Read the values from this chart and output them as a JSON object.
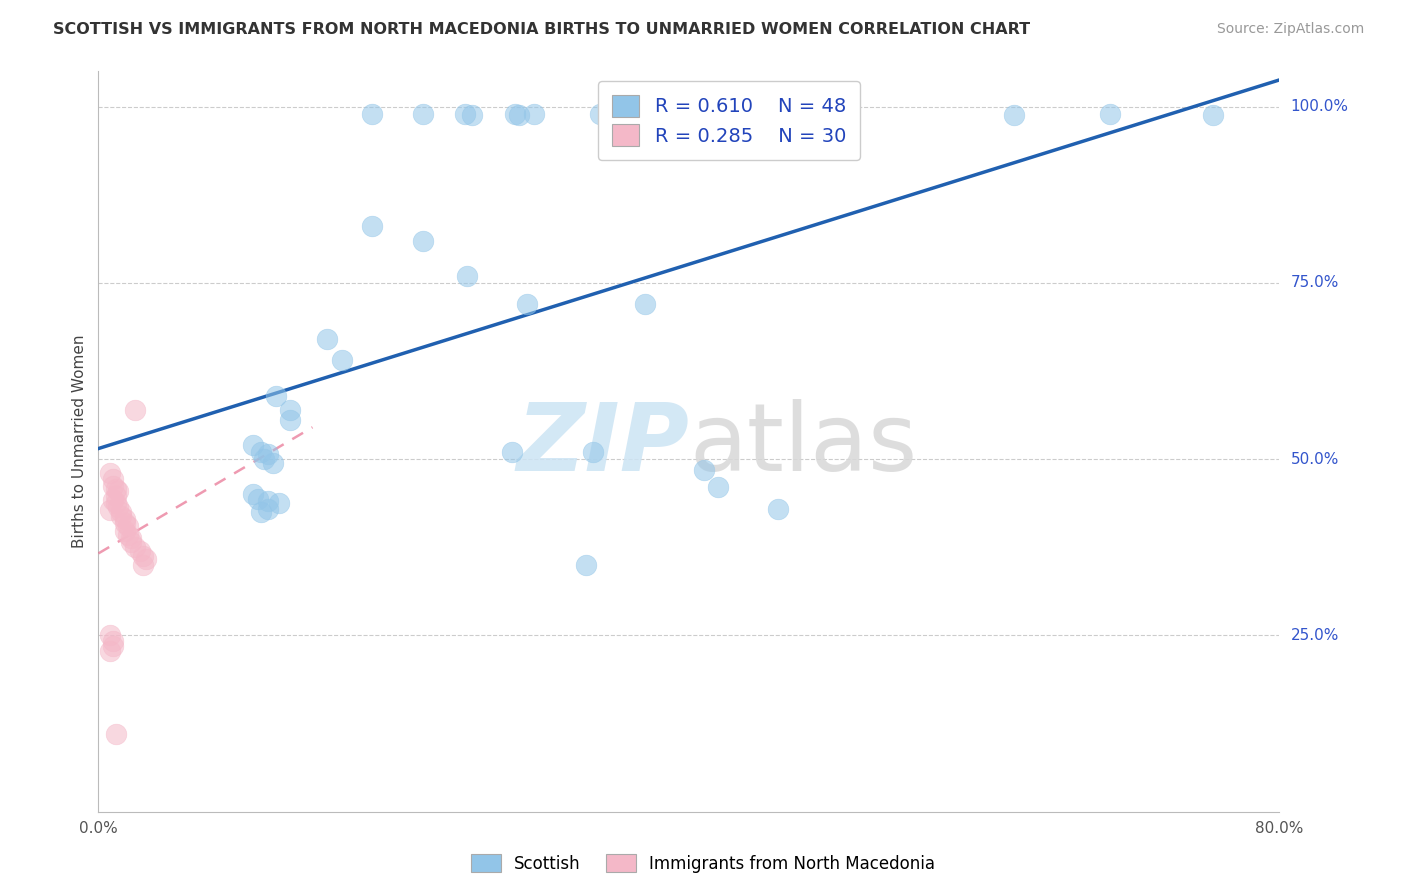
{
  "title": "SCOTTISH VS IMMIGRANTS FROM NORTH MACEDONIA BIRTHS TO UNMARRIED WOMEN CORRELATION CHART",
  "source": "Source: ZipAtlas.com",
  "ylabel": "Births to Unmarried Women",
  "xlim": [
    0.0,
    0.8
  ],
  "ylim": [
    0.0,
    1.05
  ],
  "blue_color": "#92c5e8",
  "pink_color": "#f4b8c8",
  "blue_line_color": "#2060b0",
  "pink_line_color": "#e87090",
  "grid_color": "#cccccc",
  "blue_scatter_x": [
    0.185,
    0.22,
    0.248,
    0.253,
    0.282,
    0.285,
    0.295,
    0.34,
    0.375,
    0.62,
    0.685,
    0.755,
    0.185,
    0.22,
    0.25,
    0.29,
    0.37,
    0.155,
    0.165,
    0.12,
    0.13,
    0.13,
    0.105,
    0.11,
    0.115,
    0.112,
    0.118,
    0.105,
    0.108,
    0.115,
    0.122,
    0.115,
    0.11,
    0.28,
    0.335,
    0.41,
    0.42,
    0.46,
    0.33
  ],
  "blue_scatter_y": [
    0.99,
    0.99,
    0.99,
    0.988,
    0.99,
    0.988,
    0.99,
    0.99,
    0.99,
    0.988,
    0.99,
    0.988,
    0.83,
    0.81,
    0.76,
    0.72,
    0.72,
    0.67,
    0.64,
    0.59,
    0.57,
    0.555,
    0.52,
    0.51,
    0.508,
    0.5,
    0.495,
    0.45,
    0.443,
    0.44,
    0.438,
    0.43,
    0.425,
    0.51,
    0.51,
    0.485,
    0.46,
    0.43,
    0.35
  ],
  "pink_scatter_x": [
    0.008,
    0.01,
    0.01,
    0.012,
    0.013,
    0.012,
    0.01,
    0.012,
    0.013,
    0.008,
    0.015,
    0.015,
    0.018,
    0.018,
    0.02,
    0.018,
    0.02,
    0.022,
    0.022,
    0.025,
    0.028,
    0.03,
    0.032,
    0.03,
    0.008,
    0.01,
    0.01,
    0.008,
    0.025,
    0.012
  ],
  "pink_scatter_y": [
    0.48,
    0.472,
    0.462,
    0.458,
    0.455,
    0.448,
    0.442,
    0.438,
    0.432,
    0.428,
    0.425,
    0.42,
    0.415,
    0.41,
    0.405,
    0.398,
    0.392,
    0.388,
    0.382,
    0.375,
    0.37,
    0.362,
    0.358,
    0.35,
    0.25,
    0.242,
    0.235,
    0.228,
    0.57,
    0.11
  ]
}
